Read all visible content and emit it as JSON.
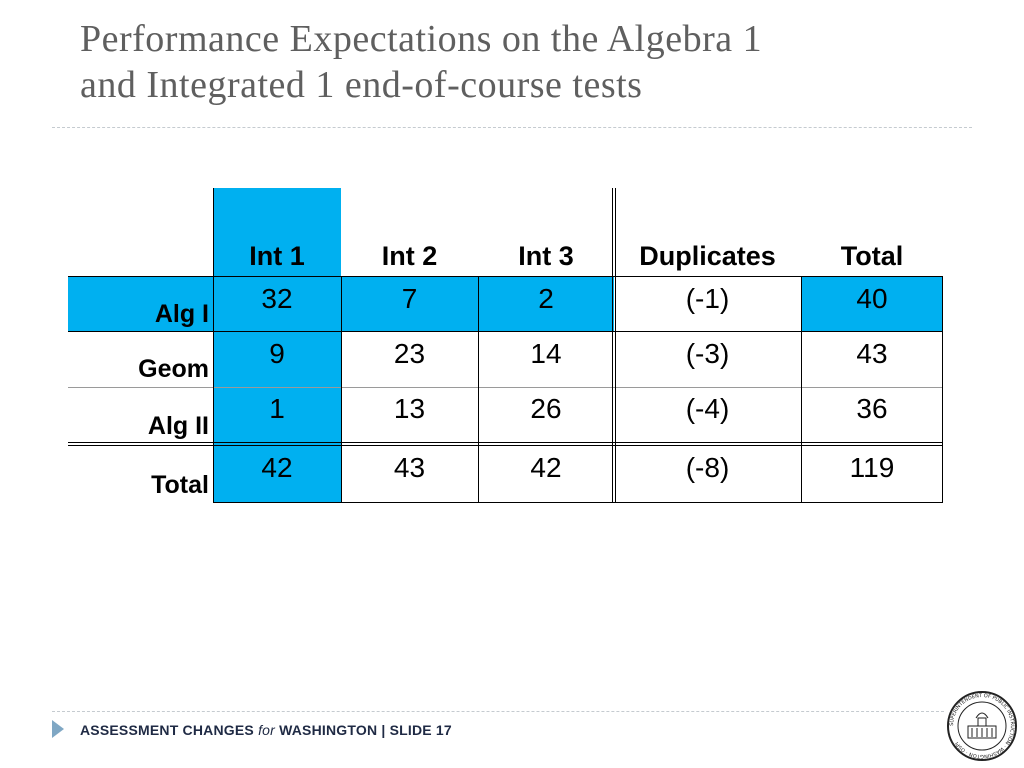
{
  "slide": {
    "title_line1": "Performance Expectations on the Algebra 1",
    "title_line2": "and Integrated 1 end-of-course tests"
  },
  "table": {
    "columns": [
      "Int 1",
      "Int 2",
      "Int 3",
      "Duplicates",
      "Total"
    ],
    "rows": [
      {
        "label": "Alg I",
        "values": [
          "32",
          "7",
          "2",
          "(-1)",
          "40"
        ]
      },
      {
        "label": "Geom",
        "values": [
          "9",
          "23",
          "14",
          "(-3)",
          "43"
        ]
      },
      {
        "label": "Alg II",
        "values": [
          "1",
          "13",
          "26",
          "(-4)",
          "36"
        ]
      },
      {
        "label": "Total",
        "values": [
          "42",
          "43",
          "42",
          "(-8)",
          "119"
        ]
      }
    ],
    "highlight_color": "#00b0f0"
  },
  "footer": {
    "part1": "ASSESSMENT CHANGES ",
    "for_word": "for",
    "part2": " WASHINGTON  |  SLIDE 17",
    "seal_text": "SUPERINTENDENT OF PUBLIC INSTRUCTION · WASHINGTON · OSPI"
  }
}
